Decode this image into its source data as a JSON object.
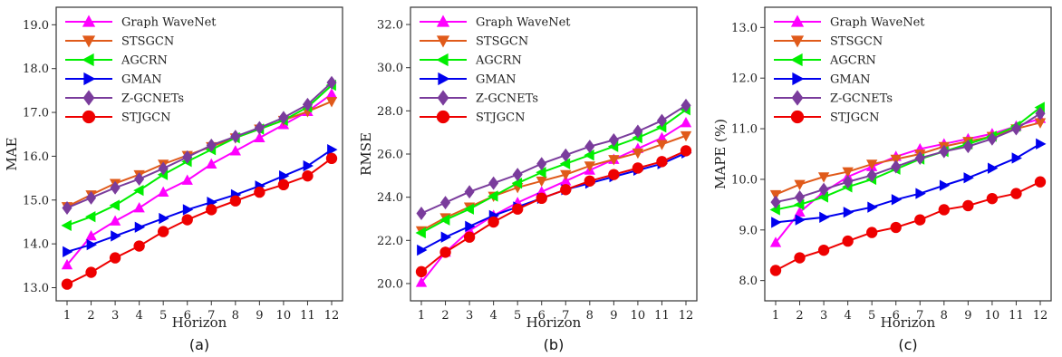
{
  "chart_data": [
    {
      "type": "line",
      "caption": "(a)",
      "xlabel": "Horizon",
      "ylabel": "MAE",
      "x": [
        1,
        2,
        3,
        4,
        5,
        6,
        7,
        8,
        9,
        10,
        11,
        12
      ],
      "xticks": [
        "1",
        "2",
        "3",
        "4",
        "5",
        "6",
        "7",
        "8",
        "9",
        "10",
        "11",
        "12"
      ],
      "ylim": [
        12.7,
        19.4
      ],
      "yticks": [
        "13.0",
        "14.0",
        "15.0",
        "16.0",
        "17.0",
        "18.0",
        "19.0"
      ],
      "ytick_values": [
        13,
        14,
        15,
        16,
        17,
        18,
        19
      ],
      "legend_position": "top-left",
      "grid": false,
      "series": [
        {
          "name": "Graph WaveNet",
          "color": "#ff00ff",
          "marker": "triangle-up",
          "values": [
            13.52,
            14.18,
            14.52,
            14.82,
            15.18,
            15.45,
            15.82,
            16.12,
            16.42,
            16.72,
            17.02,
            17.42
          ]
        },
        {
          "name": "STSGCN",
          "color": "#e05a1a",
          "marker": "triangle-down",
          "values": [
            14.85,
            15.12,
            15.38,
            15.58,
            15.82,
            16.02,
            16.22,
            16.42,
            16.62,
            16.82,
            17.02,
            17.25
          ]
        },
        {
          "name": "AGCRN",
          "color": "#00ee00",
          "marker": "triangle-left",
          "values": [
            14.42,
            14.62,
            14.88,
            15.22,
            15.58,
            15.88,
            16.15,
            16.42,
            16.62,
            16.82,
            17.12,
            17.62
          ]
        },
        {
          "name": "GMAN",
          "color": "#0000ee",
          "marker": "triangle-right",
          "values": [
            13.82,
            13.98,
            14.18,
            14.38,
            14.58,
            14.78,
            14.95,
            15.12,
            15.32,
            15.55,
            15.78,
            16.15
          ]
        },
        {
          "name": "Z-GCNETs",
          "color": "#7a3c9c",
          "marker": "diamond",
          "values": [
            14.82,
            15.05,
            15.28,
            15.48,
            15.72,
            15.98,
            16.25,
            16.45,
            16.65,
            16.88,
            17.18,
            17.68
          ]
        },
        {
          "name": "STJGCN",
          "color": "#ee0000",
          "marker": "circle",
          "values": [
            13.08,
            13.35,
            13.68,
            13.95,
            14.28,
            14.55,
            14.78,
            14.98,
            15.18,
            15.35,
            15.55,
            15.95
          ]
        }
      ]
    },
    {
      "type": "line",
      "caption": "(b)",
      "xlabel": "Horizon",
      "ylabel": "RMSE",
      "x": [
        1,
        2,
        3,
        4,
        5,
        6,
        7,
        8,
        9,
        10,
        11,
        12
      ],
      "xticks": [
        "1",
        "2",
        "3",
        "4",
        "5",
        "6",
        "7",
        "8",
        "9",
        "10",
        "11",
        "12"
      ],
      "ylim": [
        19.2,
        32.8
      ],
      "yticks": [
        "20.0",
        "22.0",
        "24.0",
        "26.0",
        "28.0",
        "30.0",
        "32.0"
      ],
      "ytick_values": [
        20,
        22,
        24,
        26,
        28,
        30,
        32
      ],
      "legend_position": "top-left",
      "grid": false,
      "series": [
        {
          "name": "Graph WaveNet",
          "color": "#ff00ff",
          "marker": "triangle-up",
          "values": [
            20.05,
            21.45,
            22.45,
            23.15,
            23.75,
            24.25,
            24.75,
            25.25,
            25.75,
            26.25,
            26.75,
            27.45
          ]
        },
        {
          "name": "STSGCN",
          "color": "#e05a1a",
          "marker": "triangle-down",
          "values": [
            22.45,
            23.05,
            23.55,
            24.05,
            24.45,
            24.75,
            25.05,
            25.45,
            25.75,
            26.05,
            26.45,
            26.85
          ]
        },
        {
          "name": "AGCRN",
          "color": "#00ee00",
          "marker": "triangle-left",
          "values": [
            22.35,
            22.95,
            23.45,
            24.05,
            24.65,
            25.15,
            25.55,
            25.95,
            26.35,
            26.75,
            27.25,
            28.05
          ]
        },
        {
          "name": "GMAN",
          "color": "#0000ee",
          "marker": "triangle-right",
          "values": [
            21.55,
            22.15,
            22.65,
            23.15,
            23.55,
            23.95,
            24.35,
            24.65,
            24.95,
            25.25,
            25.55,
            26.05
          ]
        },
        {
          "name": "Z-GCNETs",
          "color": "#7a3c9c",
          "marker": "diamond",
          "values": [
            23.25,
            23.75,
            24.25,
            24.65,
            25.05,
            25.55,
            25.95,
            26.35,
            26.65,
            27.05,
            27.55,
            28.25
          ]
        },
        {
          "name": "STJGCN",
          "color": "#ee0000",
          "marker": "circle",
          "values": [
            20.55,
            21.45,
            22.15,
            22.85,
            23.45,
            23.95,
            24.35,
            24.75,
            25.05,
            25.35,
            25.65,
            26.15
          ]
        }
      ]
    },
    {
      "type": "line",
      "caption": "(c)",
      "xlabel": "Horizon",
      "ylabel": "MAPE (%)",
      "x": [
        1,
        2,
        3,
        4,
        5,
        6,
        7,
        8,
        9,
        10,
        11,
        12
      ],
      "xticks": [
        "1",
        "2",
        "3",
        "4",
        "5",
        "6",
        "7",
        "8",
        "9",
        "10",
        "11",
        "12"
      ],
      "ylim": [
        7.6,
        13.4
      ],
      "yticks": [
        "8.0",
        "9.0",
        "10.0",
        "11.0",
        "12.0",
        "13.0"
      ],
      "ytick_values": [
        8,
        9,
        10,
        11,
        12,
        13
      ],
      "legend_position": "top-left",
      "grid": false,
      "series": [
        {
          "name": "Graph WaveNet",
          "color": "#ff00ff",
          "marker": "triangle-up",
          "values": [
            8.75,
            9.35,
            9.75,
            10.05,
            10.25,
            10.45,
            10.6,
            10.7,
            10.8,
            10.9,
            11.05,
            11.2
          ]
        },
        {
          "name": "STSGCN",
          "color": "#e05a1a",
          "marker": "triangle-down",
          "values": [
            9.7,
            9.9,
            10.05,
            10.15,
            10.3,
            10.4,
            10.5,
            10.65,
            10.75,
            10.85,
            11.0,
            11.12
          ]
        },
        {
          "name": "AGCRN",
          "color": "#00ee00",
          "marker": "triangle-left",
          "values": [
            9.4,
            9.5,
            9.65,
            9.85,
            10.0,
            10.2,
            10.4,
            10.55,
            10.7,
            10.85,
            11.05,
            11.42
          ]
        },
        {
          "name": "GMAN",
          "color": "#0000ee",
          "marker": "triangle-right",
          "values": [
            9.15,
            9.2,
            9.25,
            9.35,
            9.45,
            9.6,
            9.72,
            9.88,
            10.03,
            10.22,
            10.42,
            10.7
          ]
        },
        {
          "name": "Z-GCNETs",
          "color": "#7a3c9c",
          "marker": "diamond",
          "values": [
            9.55,
            9.65,
            9.8,
            9.95,
            10.08,
            10.25,
            10.42,
            10.55,
            10.65,
            10.8,
            11.0,
            11.3
          ]
        },
        {
          "name": "STJGCN",
          "color": "#ee0000",
          "marker": "circle",
          "values": [
            8.2,
            8.45,
            8.6,
            8.78,
            8.95,
            9.05,
            9.2,
            9.4,
            9.48,
            9.62,
            9.72,
            9.95
          ]
        }
      ]
    }
  ]
}
